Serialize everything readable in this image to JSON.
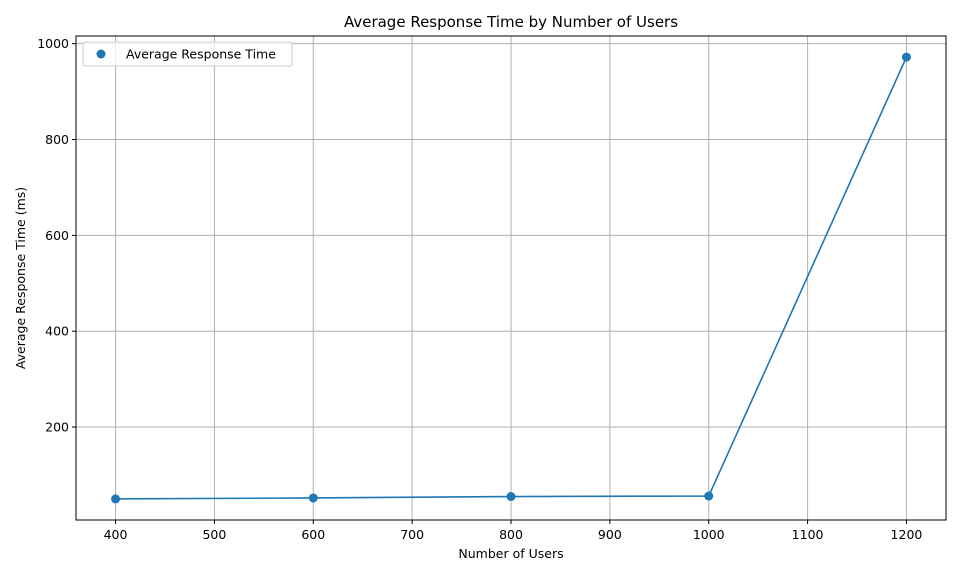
{
  "chart_data": {
    "type": "line",
    "title": "Average Response Time by Number of Users",
    "xlabel": "Number of Users",
    "ylabel": "Average Response Time (ms)",
    "x": [
      400,
      600,
      800,
      1000,
      1200
    ],
    "series": [
      {
        "name": "Average Response Time",
        "values": [
          50,
          52,
          55,
          56,
          972
        ],
        "color": "#1f77b4"
      }
    ],
    "xlim": [
      360,
      1240
    ],
    "ylim": [
      6,
      1016
    ],
    "xticks": [
      400,
      500,
      600,
      700,
      800,
      900,
      1000,
      1100,
      1200
    ],
    "yticks": [
      200,
      400,
      600,
      800,
      1000
    ],
    "grid": true,
    "legend_position": "top-left"
  }
}
